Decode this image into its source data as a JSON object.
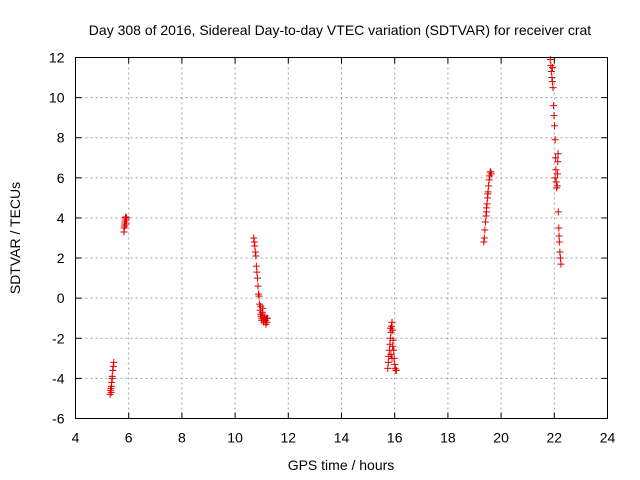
{
  "chart_data": {
    "type": "scatter",
    "title": "Day 308 of 2016, Sidereal Day-to-day VTEC variation (SDTVAR) for receiver crat",
    "xlabel": "GPS time / hours",
    "ylabel": "SDTVAR / TECUs",
    "xlim": [
      4,
      24
    ],
    "ylim": [
      -6,
      12
    ],
    "xticks": [
      "4",
      "6",
      "8",
      "10",
      "12",
      "14",
      "16",
      "18",
      "20",
      "22",
      "24"
    ],
    "yticks": [
      "-6",
      "-4",
      "-2",
      "0",
      "2",
      "4",
      "6",
      "8",
      "10",
      "12"
    ],
    "grid": true,
    "marker": "+",
    "color": "#e00000",
    "series": [
      {
        "name": "SDTVAR",
        "points": [
          [
            5.3,
            -4.8
          ],
          [
            5.32,
            -4.6
          ],
          [
            5.35,
            -4.4
          ],
          [
            5.33,
            -4.5
          ],
          [
            5.36,
            -4.2
          ],
          [
            5.38,
            -3.9
          ],
          [
            5.4,
            -3.6
          ],
          [
            5.42,
            -3.4
          ],
          [
            5.44,
            -3.2
          ],
          [
            5.38,
            -4.0
          ],
          [
            5.34,
            -4.7
          ],
          [
            5.82,
            3.3
          ],
          [
            5.83,
            3.5
          ],
          [
            5.84,
            3.6
          ],
          [
            5.85,
            3.7
          ],
          [
            5.86,
            3.8
          ],
          [
            5.87,
            3.9
          ],
          [
            5.88,
            4.0
          ],
          [
            5.89,
            4.05
          ],
          [
            5.9,
            3.9
          ],
          [
            5.91,
            3.7
          ],
          [
            5.92,
            4.0
          ],
          [
            5.86,
            3.6
          ],
          [
            10.7,
            3.0
          ],
          [
            10.72,
            2.8
          ],
          [
            10.74,
            2.6
          ],
          [
            10.76,
            2.3
          ],
          [
            10.78,
            2.1
          ],
          [
            10.8,
            1.6
          ],
          [
            10.82,
            1.3
          ],
          [
            10.84,
            1.0
          ],
          [
            10.86,
            0.6
          ],
          [
            10.88,
            0.2
          ],
          [
            10.9,
            0.1
          ],
          [
            10.92,
            -0.3
          ],
          [
            10.94,
            -0.6
          ],
          [
            10.96,
            -0.8
          ],
          [
            10.98,
            -0.9
          ],
          [
            11.0,
            -1.0
          ],
          [
            11.02,
            -0.7
          ],
          [
            11.04,
            -0.5
          ],
          [
            11.06,
            -1.1
          ],
          [
            11.08,
            -1.2
          ],
          [
            11.1,
            -1.0
          ],
          [
            11.12,
            -0.9
          ],
          [
            11.14,
            -1.1
          ],
          [
            11.16,
            -1.3
          ],
          [
            11.18,
            -1.0
          ],
          [
            11.2,
            -1.2
          ],
          [
            11.22,
            -1.0
          ],
          [
            10.96,
            -0.4
          ],
          [
            11.0,
            -1.1
          ],
          [
            11.05,
            -0.9
          ],
          [
            15.74,
            -3.5
          ],
          [
            15.76,
            -3.2
          ],
          [
            15.78,
            -2.9
          ],
          [
            15.8,
            -2.6
          ],
          [
            15.82,
            -2.3
          ],
          [
            15.84,
            -2.0
          ],
          [
            15.86,
            -1.7
          ],
          [
            15.88,
            -1.4
          ],
          [
            15.9,
            -1.2
          ],
          [
            15.92,
            -1.6
          ],
          [
            15.94,
            -2.1
          ],
          [
            15.96,
            -2.6
          ],
          [
            15.98,
            -3.0
          ],
          [
            16.0,
            -3.3
          ],
          [
            16.02,
            -3.5
          ],
          [
            16.04,
            -3.6
          ],
          [
            16.06,
            -3.6
          ],
          [
            15.86,
            -2.8
          ],
          [
            15.9,
            -3.0
          ],
          [
            15.84,
            -1.5
          ],
          [
            15.92,
            -2.4
          ],
          [
            19.35,
            2.8
          ],
          [
            19.37,
            3.0
          ],
          [
            19.39,
            3.4
          ],
          [
            19.41,
            3.8
          ],
          [
            19.43,
            4.1
          ],
          [
            19.45,
            4.3
          ],
          [
            19.47,
            4.7
          ],
          [
            19.49,
            5.0
          ],
          [
            19.51,
            5.3
          ],
          [
            19.53,
            5.6
          ],
          [
            19.55,
            5.9
          ],
          [
            19.57,
            6.1
          ],
          [
            19.59,
            6.3
          ],
          [
            19.61,
            6.3
          ],
          [
            19.63,
            6.2
          ],
          [
            19.45,
            4.5
          ],
          [
            19.5,
            5.2
          ],
          [
            21.85,
            11.9
          ],
          [
            21.87,
            11.6
          ],
          [
            21.89,
            11.3
          ],
          [
            21.91,
            11.0
          ],
          [
            21.93,
            10.8
          ],
          [
            21.95,
            10.5
          ],
          [
            21.97,
            9.6
          ],
          [
            21.99,
            9.1
          ],
          [
            22.01,
            8.6
          ],
          [
            22.03,
            7.9
          ],
          [
            22.05,
            7.0
          ],
          [
            22.06,
            6.4
          ],
          [
            22.07,
            5.8
          ],
          [
            22.09,
            5.5
          ],
          [
            22.11,
            5.6
          ],
          [
            22.12,
            6.2
          ],
          [
            22.13,
            6.8
          ],
          [
            22.14,
            7.2
          ],
          [
            22.15,
            4.3
          ],
          [
            22.17,
            3.5
          ],
          [
            22.18,
            3.1
          ],
          [
            22.19,
            2.8
          ],
          [
            22.21,
            2.3
          ],
          [
            22.23,
            2.0
          ],
          [
            22.25,
            1.7
          ],
          [
            22.03,
            6.0
          ],
          [
            21.93,
            11.5
          ]
        ]
      }
    ]
  }
}
